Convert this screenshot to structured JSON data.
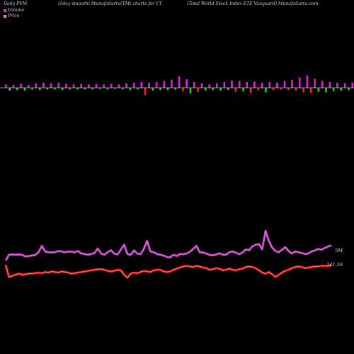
{
  "header": {
    "left": "Daily PVM",
    "center_left": "(5day smooth) MunafaSutra(TM) charts for VT",
    "center_right": "(Total World Stock Index ETF Vanguard) MunafaSutra.com"
  },
  "legend": [
    {
      "label": "Volume",
      "color": "#e020e0"
    },
    {
      "label": "Price",
      "color": "#ff9050"
    }
  ],
  "colors": {
    "background": "#000000",
    "volume_line": "#c040c0",
    "volume_line_core": "#e070e0",
    "price_line": "#ff1010",
    "price_line_core": "#ff8080",
    "bar_up": "#e020e0",
    "bar_down": "#20d020",
    "bar_red": "#ff2020",
    "baseline": "#bbbbbb"
  },
  "value_labels": {
    "volume": "5M",
    "price": "141.56"
  },
  "chart_data": {
    "type": "line",
    "note_series": "PVM bars over volume and price lines",
    "bars": [
      {
        "v": 0.6,
        "c": "up"
      },
      {
        "v": -0.5,
        "c": "down"
      },
      {
        "v": 0.5,
        "c": "up"
      },
      {
        "v": -0.4,
        "c": "down"
      },
      {
        "v": 0.7,
        "c": "up"
      },
      {
        "v": -0.5,
        "c": "down"
      },
      {
        "v": 0.5,
        "c": "up"
      },
      {
        "v": -0.3,
        "c": "down"
      },
      {
        "v": 0.8,
        "c": "up"
      },
      {
        "v": -0.4,
        "c": "down"
      },
      {
        "v": 0.9,
        "c": "up"
      },
      {
        "v": -0.3,
        "c": "down"
      },
      {
        "v": 0.8,
        "c": "up"
      },
      {
        "v": -0.3,
        "c": "down"
      },
      {
        "v": 0.9,
        "c": "up"
      },
      {
        "v": -0.4,
        "c": "down"
      },
      {
        "v": 0.7,
        "c": "up"
      },
      {
        "v": -0.3,
        "c": "down"
      },
      {
        "v": 0.6,
        "c": "up"
      },
      {
        "v": -0.3,
        "c": "down"
      },
      {
        "v": 0.7,
        "c": "up"
      },
      {
        "v": -0.3,
        "c": "down"
      },
      {
        "v": 0.6,
        "c": "up"
      },
      {
        "v": -0.3,
        "c": "down"
      },
      {
        "v": 0.7,
        "c": "up"
      },
      {
        "v": -0.2,
        "c": "down"
      },
      {
        "v": 0.6,
        "c": "up"
      },
      {
        "v": -0.3,
        "c": "down"
      },
      {
        "v": 0.7,
        "c": "up"
      },
      {
        "v": -0.2,
        "c": "down"
      },
      {
        "v": 0.6,
        "c": "up"
      },
      {
        "v": -0.3,
        "c": "down"
      },
      {
        "v": 0.8,
        "c": "up"
      },
      {
        "v": -0.4,
        "c": "down"
      },
      {
        "v": 0.9,
        "c": "up"
      },
      {
        "v": -0.3,
        "c": "down"
      },
      {
        "v": 1.0,
        "c": "up"
      },
      {
        "v": -1.3,
        "c": "red"
      },
      {
        "v": 0.9,
        "c": "up"
      },
      {
        "v": -0.5,
        "c": "down"
      },
      {
        "v": 1.0,
        "c": "up"
      },
      {
        "v": -0.4,
        "c": "down"
      },
      {
        "v": 1.2,
        "c": "up"
      },
      {
        "v": -0.4,
        "c": "down"
      },
      {
        "v": 1.4,
        "c": "up"
      },
      {
        "v": -0.3,
        "c": "down"
      },
      {
        "v": 2.0,
        "c": "up"
      },
      {
        "v": -0.6,
        "c": "red"
      },
      {
        "v": 1.5,
        "c": "up"
      },
      {
        "v": -1.0,
        "c": "down"
      },
      {
        "v": 1.0,
        "c": "up"
      },
      {
        "v": -0.7,
        "c": "red"
      },
      {
        "v": 0.8,
        "c": "up"
      },
      {
        "v": -0.5,
        "c": "down"
      },
      {
        "v": 0.6,
        "c": "up"
      },
      {
        "v": -0.4,
        "c": "down"
      },
      {
        "v": 0.8,
        "c": "up"
      },
      {
        "v": -0.5,
        "c": "down"
      },
      {
        "v": 1.0,
        "c": "up"
      },
      {
        "v": -0.4,
        "c": "down"
      },
      {
        "v": 1.3,
        "c": "up"
      },
      {
        "v": -0.7,
        "c": "red"
      },
      {
        "v": 1.2,
        "c": "up"
      },
      {
        "v": -0.6,
        "c": "down"
      },
      {
        "v": 1.0,
        "c": "up"
      },
      {
        "v": -0.9,
        "c": "red"
      },
      {
        "v": 1.1,
        "c": "up"
      },
      {
        "v": -0.5,
        "c": "red"
      },
      {
        "v": 0.9,
        "c": "up"
      },
      {
        "v": -0.8,
        "c": "down"
      },
      {
        "v": 1.0,
        "c": "up"
      },
      {
        "v": -0.4,
        "c": "red"
      },
      {
        "v": 0.9,
        "c": "up"
      },
      {
        "v": -0.3,
        "c": "red"
      },
      {
        "v": 1.2,
        "c": "up"
      },
      {
        "v": -0.4,
        "c": "red"
      },
      {
        "v": 1.4,
        "c": "up"
      },
      {
        "v": -0.5,
        "c": "red"
      },
      {
        "v": 1.8,
        "c": "up"
      },
      {
        "v": -0.8,
        "c": "red"
      },
      {
        "v": 2.2,
        "c": "up"
      },
      {
        "v": -0.9,
        "c": "red"
      },
      {
        "v": 1.6,
        "c": "up"
      },
      {
        "v": -0.7,
        "c": "down"
      },
      {
        "v": 1.2,
        "c": "up"
      },
      {
        "v": -0.8,
        "c": "down"
      },
      {
        "v": 1.0,
        "c": "up"
      },
      {
        "v": -0.6,
        "c": "down"
      },
      {
        "v": 0.9,
        "c": "up"
      },
      {
        "v": -0.5,
        "c": "down"
      },
      {
        "v": 0.8,
        "c": "up"
      },
      {
        "v": -0.4,
        "c": "down"
      },
      {
        "v": 0.9,
        "c": "up"
      },
      {
        "v": -0.3,
        "c": "down"
      },
      {
        "v": 0.8,
        "c": "up"
      },
      {
        "v": -0.3,
        "c": "down"
      },
      {
        "v": 1.0,
        "c": "up"
      },
      {
        "v": -0.4,
        "c": "down"
      },
      {
        "v": 1.1,
        "c": "up"
      },
      {
        "v": -0.3,
        "c": "down"
      }
    ],
    "volume": [
      0.22,
      0.45,
      0.46,
      0.45,
      0.46,
      0.45,
      0.38,
      0.4,
      0.42,
      0.44,
      0.55,
      0.8,
      0.58,
      0.55,
      0.54,
      0.55,
      0.6,
      0.58,
      0.55,
      0.58,
      0.57,
      0.55,
      0.6,
      0.5,
      0.48,
      0.45,
      0.48,
      0.52,
      0.7,
      0.5,
      0.45,
      0.55,
      0.63,
      0.5,
      0.46,
      0.65,
      0.85,
      0.48,
      0.45,
      0.62,
      0.5,
      0.47,
      0.68,
      1.0,
      0.58,
      0.55,
      0.48,
      0.45,
      0.42,
      0.36,
      0.35,
      0.45,
      0.4,
      0.48,
      0.47,
      0.5,
      0.57,
      0.68,
      0.8,
      0.55,
      0.54,
      0.5,
      0.44,
      0.43,
      0.46,
      0.51,
      0.45,
      0.45,
      0.55,
      0.58,
      0.53,
      0.47,
      0.54,
      0.66,
      0.63,
      0.78,
      0.85,
      0.87,
      0.67,
      1.4,
      1.0,
      0.73,
      0.6,
      0.55,
      0.65,
      0.75,
      0.6,
      0.5,
      0.58,
      0.55,
      0.52,
      0.48,
      0.5,
      0.58,
      0.62,
      0.68,
      0.65,
      0.72,
      0.78,
      0.82
    ],
    "price": [
      143.8,
      141.6,
      141.8,
      142.0,
      142.2,
      142.0,
      142.1,
      142.2,
      142.2,
      142.3,
      142.4,
      142.3,
      142.5,
      142.4,
      142.6,
      142.5,
      142.4,
      142.6,
      142.5,
      142.4,
      142.2,
      142.3,
      142.4,
      142.5,
      142.6,
      142.7,
      142.8,
      142.9,
      143.0,
      143.0,
      142.9,
      142.7,
      142.6,
      142.7,
      142.9,
      142.8,
      142.0,
      141.5,
      142.2,
      142.4,
      142.3,
      142.5,
      142.7,
      142.6,
      142.5,
      142.8,
      142.9,
      142.9,
      142.6,
      142.5,
      142.6,
      142.9,
      143.1,
      143.3,
      143.5,
      143.6,
      143.5,
      143.4,
      143.6,
      143.5,
      143.3,
      143.2,
      142.9,
      143.0,
      143.2,
      143.1,
      142.8,
      142.9,
      143.1,
      142.9,
      142.8,
      143.0,
      143.1,
      143.4,
      143.5,
      143.4,
      143.2,
      142.8,
      142.4,
      142.2,
      142.5,
      142.1,
      141.6,
      142.0,
      142.4,
      142.7,
      142.9,
      143.2,
      143.4,
      143.5,
      143.4,
      143.2,
      143.3,
      143.4,
      143.5,
      143.5,
      143.6,
      143.6,
      143.6,
      143.7
    ]
  }
}
